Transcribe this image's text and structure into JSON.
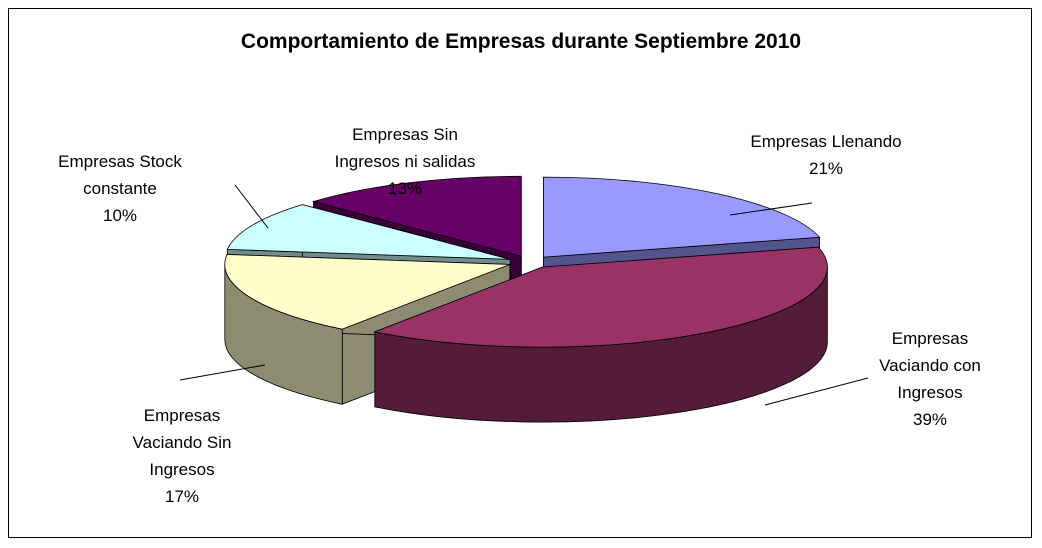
{
  "chart_data": {
    "type": "pie3d",
    "title": "Comportamiento de Empresas durante Septiembre  2010",
    "categories": [
      "Empresas Llenando",
      "Empresas Vaciando con Ingresos",
      "Empresas Vaciando Sin Ingresos",
      "Empresas Stock constante",
      "Empresas Sin Ingresos ni salidas"
    ],
    "values": [
      21,
      39,
      17,
      10,
      13
    ],
    "value_labels": [
      "21%",
      "39%",
      "17%",
      "10%",
      "13%"
    ],
    "colors": [
      "#9999ff",
      "#993366",
      "#ffffcc",
      "#ccffff",
      "#660066"
    ]
  }
}
